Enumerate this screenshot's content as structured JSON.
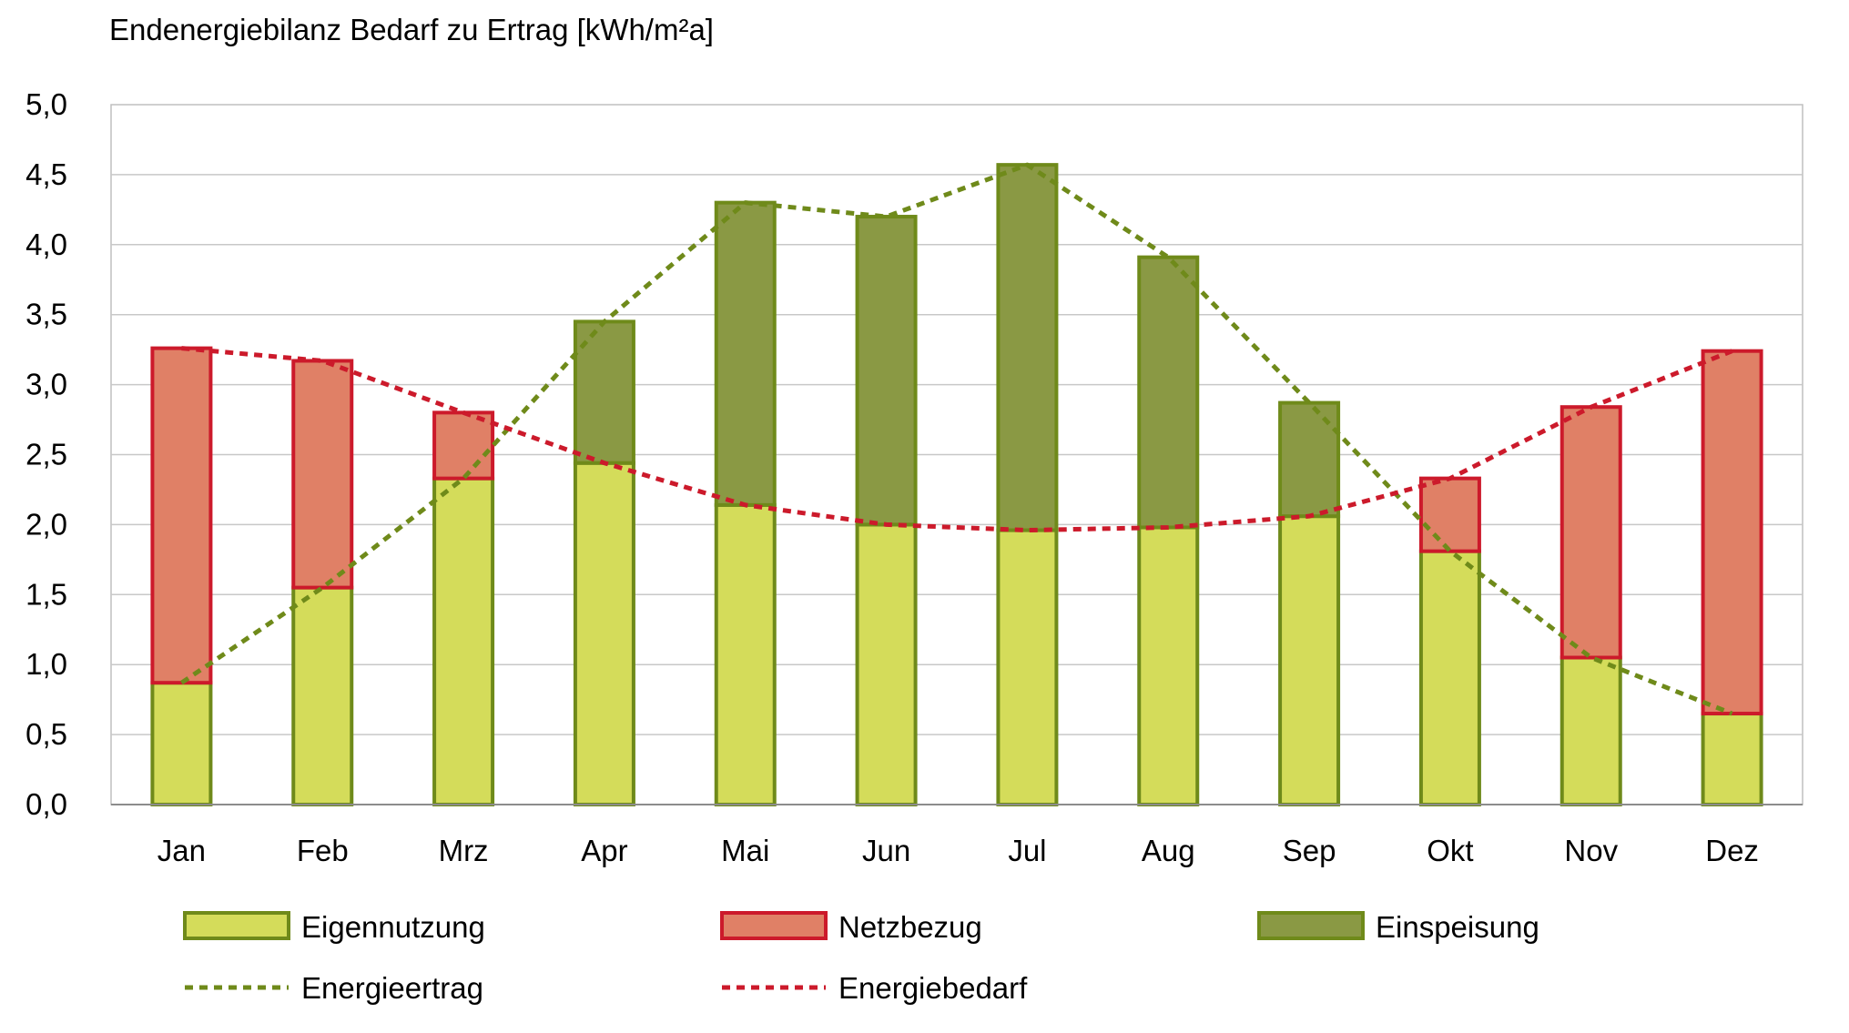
{
  "chart_data": {
    "type": "bar",
    "title": "Endenergiebilanz Bedarf zu Ertrag [kWh/m²a]",
    "categories": [
      "Jan",
      "Feb",
      "Mrz",
      "Apr",
      "Mai",
      "Jun",
      "Jul",
      "Aug",
      "Sep",
      "Okt",
      "Nov",
      "Dez"
    ],
    "ylim": [
      0,
      5
    ],
    "yticks": [
      "0,0",
      "0,5",
      "1,0",
      "1,5",
      "2,0",
      "2,5",
      "3,0",
      "3,5",
      "4,0",
      "4,5",
      "5,0"
    ],
    "stacked": true,
    "grid": true,
    "legend_position": "bottom",
    "series": [
      {
        "name": "Eigennutzung",
        "kind": "bar",
        "color": "#d4dc5a",
        "edge": "#6f8a1a",
        "values": [
          0.87,
          1.55,
          2.33,
          2.44,
          2.14,
          2.0,
          1.96,
          1.98,
          2.06,
          1.81,
          1.05,
          0.65
        ]
      },
      {
        "name": "Netzbezug",
        "kind": "bar",
        "color": "#e08066",
        "edge": "#cc1a2b",
        "values": [
          2.39,
          1.62,
          0.47,
          0,
          0,
          0,
          0,
          0,
          0,
          0.52,
          1.79,
          2.59
        ]
      },
      {
        "name": "Einspeisung",
        "kind": "bar",
        "color": "#8a9944",
        "edge": "#6f8a1a",
        "values": [
          0,
          0,
          0,
          1.01,
          2.16,
          2.2,
          2.61,
          1.93,
          0.81,
          0,
          0,
          0
        ]
      },
      {
        "name": "Energieertrag",
        "kind": "line",
        "dashed": true,
        "color": "#6f8a1a",
        "values": [
          0.87,
          1.55,
          2.33,
          3.45,
          4.3,
          4.2,
          4.57,
          3.91,
          2.87,
          1.81,
          1.05,
          0.65
        ]
      },
      {
        "name": "Energiebedarf",
        "kind": "line",
        "dashed": true,
        "color": "#cc1a2b",
        "values": [
          3.26,
          3.17,
          2.8,
          2.44,
          2.14,
          2.0,
          1.96,
          1.98,
          2.06,
          2.33,
          2.84,
          3.24
        ]
      }
    ]
  }
}
